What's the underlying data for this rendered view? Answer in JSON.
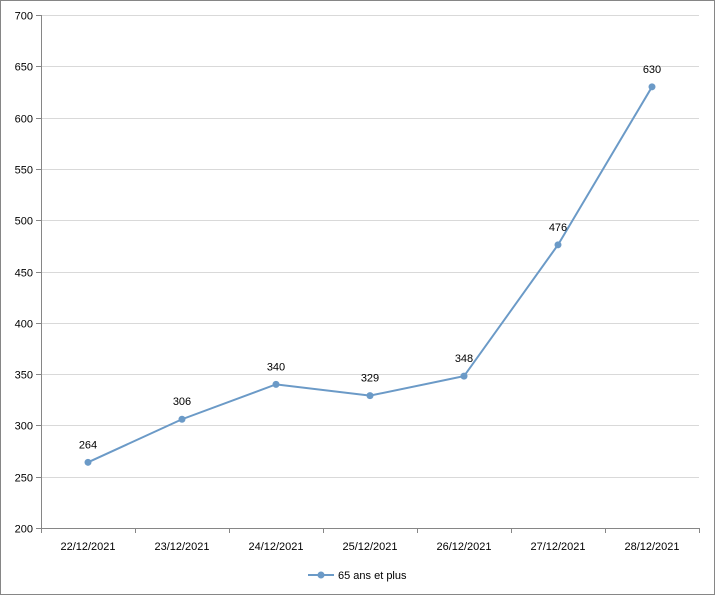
{
  "chart_data": {
    "type": "line",
    "categories": [
      "22/12/2021",
      "23/12/2021",
      "24/12/2021",
      "25/12/2021",
      "26/12/2021",
      "27/12/2021",
      "28/12/2021"
    ],
    "series": [
      {
        "name": "65 ans et plus",
        "values": [
          264,
          306,
          340,
          329,
          348,
          476,
          630
        ],
        "color": "#6b9ac7"
      }
    ],
    "ylim": [
      200,
      700
    ],
    "yticks": [
      200,
      250,
      300,
      350,
      400,
      450,
      500,
      550,
      600,
      650,
      700
    ],
    "grid": true,
    "legend_position": "bottom",
    "data_labels": true,
    "title": "",
    "xlabel": "",
    "ylabel": ""
  }
}
